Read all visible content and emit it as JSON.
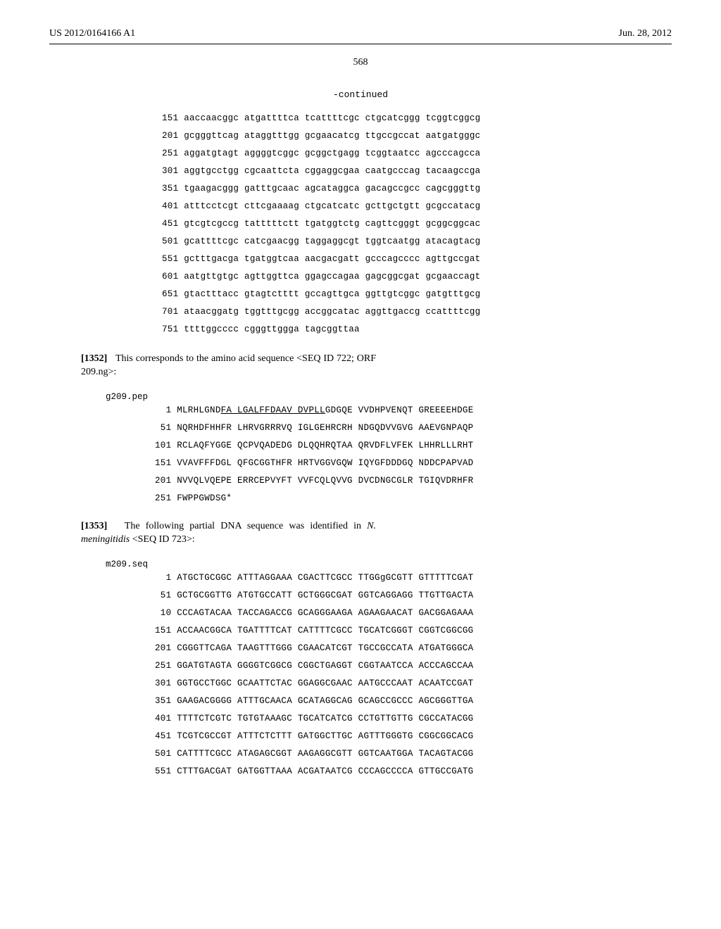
{
  "header": {
    "left": "US 2012/0164166 A1",
    "right": "Jun. 28, 2012"
  },
  "page_number": "568",
  "continued_label": "-continued",
  "seq1": {
    "lines": [
      "151 aaccaacggc atgattttca tcattttcgc ctgcatcggg tcggtcggcg",
      "201 gcgggttcag ataggtttgg gcgaacatcg ttgccgccat aatgatgggc",
      "251 aggatgtagt aggggtcggc gcggctgagg tcggtaatcc agcccagcca",
      "301 aggtgcctgg cgcaattcta cggaggcgaa caatgcccag tacaagccga",
      "351 tgaagacggg gatttgcaac agcataggca gacagccgcc cagcgggttg",
      "401 atttcctcgt cttcgaaaag ctgcatcatc gcttgctgtt gcgccatacg",
      "451 gtcgtcgccg tatttttctt tgatggtctg cagttcgggt gcggcggcac",
      "501 gcattttcgc catcgaacgg taggaggcgt tggtcaatgg atacagtacg",
      "551 gctttgacga tgatggtcaa aacgacgatt gcccagcccc agttgccgat",
      "601 aatgttgtgc agttggttca ggagccagaa gagcggcgat gcgaaccagt",
      "651 gtactttacc gtagtctttt gccagttgca ggttgtcggc gatgtttgcg",
      "701 ataacggatg tggtttgcgg accggcatac aggttgaccg ccattttcgg",
      "751 ttttggcccc cgggttggga tagcggttaa"
    ]
  },
  "para1": {
    "num": "[1352]",
    "text1": "This corresponds to the amino acid sequence <SEQ ID 722; ORF 209.ng>:"
  },
  "pep_label": "g209.pep",
  "pep": {
    "lines": [
      {
        "prefix": "  1 MLRHLGND",
        "u": "FA LGALFFDAAV DVPLL",
        "suffix": "GDGQE VVDHPVENQT GREEEEHDGE"
      },
      {
        "prefix": " 51 NQRHDFHHFR LHRVGRRRVQ IGLGEHRCRH NDGQDVVGVG AAEVGNPAQP",
        "u": "",
        "suffix": ""
      },
      {
        "prefix": "101 RCLAQFYGGE QCPVQADEDG DLQQHRQTAA QRVDFLVFEK LHHRLLLRHT",
        "u": "",
        "suffix": ""
      },
      {
        "prefix": "151 VVAVFFFDGL QFGCGGTHFR HRTVGGVGQW IQYGFDDDGQ NDDCPAPVAD",
        "u": "",
        "suffix": ""
      },
      {
        "prefix": "201 NVVQLVQEPE ERRCEPVYFT VVFCQLQVVG DVCDNGCGLR TGIQVDRHFR",
        "u": "",
        "suffix": ""
      },
      {
        "prefix": "251 FWPPGWDSG*",
        "u": "",
        "suffix": ""
      }
    ]
  },
  "para2": {
    "num": "[1353]",
    "text1": "The following partial DNA sequence was identified in ",
    "italic": "N. meningitidis",
    "text2": " <SEQ ID 723>:"
  },
  "seq2_label": "m209.seq",
  "seq2": {
    "lines": [
      "  1 ATGCTGCGGC ATTTAGGAAA CGACTTCGCC TTGGgGCGTT GTTTTTCGAT",
      " 51 GCTGCGGTTG ATGTGCCATT GCTGGGCGAT GGTCAGGAGG TTGTTGACTA",
      " 10 CCCAGTACAA TACCAGACCG GCAGGGAAGA AGAAGAACAT GACGGAGAAA",
      "151 ACCAACGGCA TGATTTTCAT CATTTTCGCC TGCATCGGGT CGGTCGGCGG",
      "201 CGGGTTCAGA TAAGTTTGGG CGAACATCGT TGCCGCCATA ATGATGGGCA",
      "251 GGATGTAGTA GGGGTCGGCG CGGCTGAGGT CGGTAATCCA ACCCAGCCAA",
      "301 GGTGCCTGGC GCAATTCTAC GGAGGCGAAC AATGCCCAAT ACAATCCGAT",
      "351 GAAGACGGGG ATTTGCAACA GCATAGGCAG GCAGCCGCCC AGCGGGTTGA",
      "401 TTTTCTCGTC TGTGTAAAGC TGCATCATCG CCTGTTGTTG CGCCATACGG",
      "451 TCGTCGCCGT ATTTCTCTTT GATGGCTTGC AGTTTGGGTG CGGCGGCACG",
      "501 CATTTTCGCC ATAGAGCGGT AAGAGGCGTT GGTCAATGGA TACAGTACGG",
      "551 CTTTGACGAT GATGGTTAAA ACGATAATCG CCCAGCCCCA GTTGCCGATG"
    ]
  }
}
